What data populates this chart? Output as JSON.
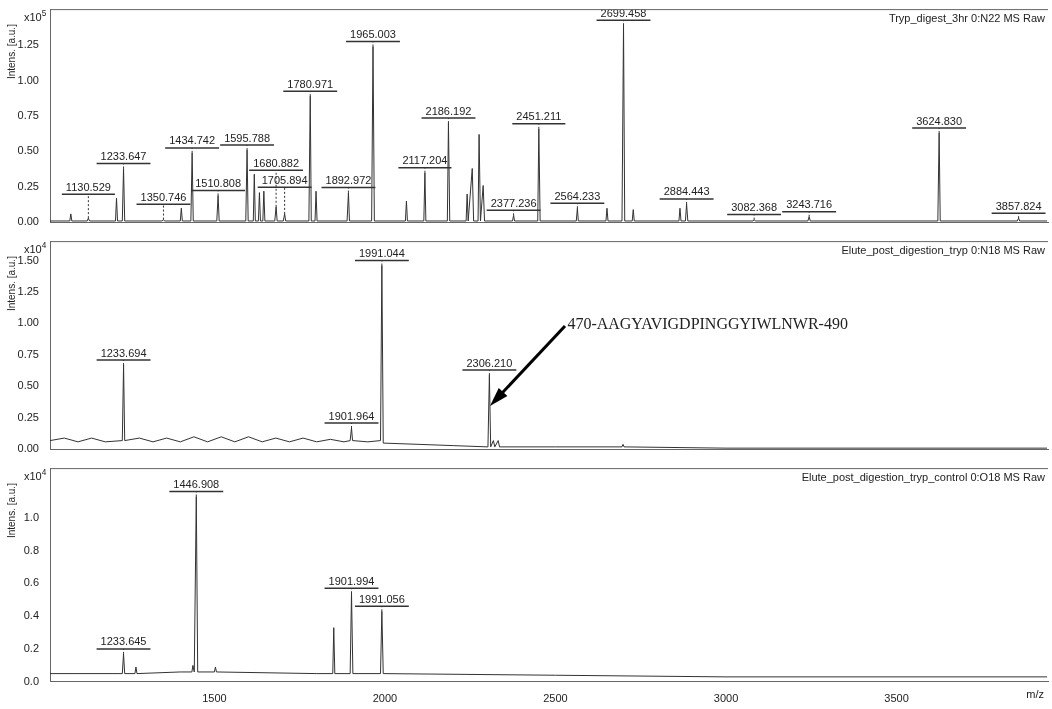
{
  "chart_data": [
    {
      "type": "line",
      "title": "Tryp_digest_3hr 0:N22 MS Raw",
      "ylabel": "Intens. [a.u.]",
      "color": "#333333",
      "tick_labels": "y",
      "xlim": [
        1018,
        3944
      ],
      "ylim": [
        0,
        1.5
      ],
      "yticks": [
        {
          "value": 0,
          "label": "0.00"
        },
        {
          "value": 0.25,
          "label": "0.25"
        },
        {
          "value": 0.5,
          "label": "0.50"
        },
        {
          "value": 0.75,
          "label": "0.75"
        },
        {
          "value": 1,
          "label": "1.00"
        },
        {
          "value": 1.25,
          "label": "1.25"
        }
      ],
      "x": [
        1018,
        1076,
        1079,
        1082,
        1127,
        1130.5,
        1134,
        1210,
        1213,
        1216,
        1230,
        1233.6,
        1237,
        1347,
        1350.7,
        1354,
        1400,
        1403,
        1406,
        1431,
        1434.7,
        1438,
        1507,
        1510.8,
        1514,
        1592,
        1595.8,
        1599,
        1614,
        1617,
        1620,
        1629,
        1632,
        1635,
        1642,
        1645,
        1648,
        1677,
        1680.9,
        1684,
        1702,
        1705.9,
        1709,
        1777,
        1781,
        1784,
        1795,
        1798,
        1801,
        1889,
        1893,
        1896,
        1961,
        1965,
        1969,
        2060,
        2063,
        2066,
        2114,
        2117.2,
        2120,
        2183,
        2186.2,
        2190,
        2238,
        2241,
        2244,
        2256,
        2260,
        2273,
        2276,
        2280,
        2288,
        2292,
        2374,
        2377.2,
        2380,
        2448,
        2451.2,
        2455,
        2561,
        2564.2,
        2567,
        2648,
        2651,
        2654,
        2695,
        2699.5,
        2703,
        2725,
        2728,
        2731,
        2862,
        2865,
        2868,
        2881,
        2884.4,
        2888,
        3079,
        3082.4,
        3086,
        3240,
        3243.7,
        3247,
        3621,
        3624.8,
        3628,
        3854,
        3857.8,
        3861,
        3940
      ],
      "values": [
        0.01,
        0.01,
        0.06,
        0.01,
        0.01,
        0.03,
        0.01,
        0.01,
        0.17,
        0.01,
        0.01,
        0.38,
        0.01,
        0.01,
        0.02,
        0.01,
        0.01,
        0.1,
        0.01,
        0.01,
        0.49,
        0.01,
        0.01,
        0.19,
        0.01,
        0.01,
        0.51,
        0.01,
        0.01,
        0.34,
        0.01,
        0.01,
        0.21,
        0.01,
        0.01,
        0.22,
        0.01,
        0.01,
        0.11,
        0.01,
        0.01,
        0.06,
        0.01,
        0.01,
        0.89,
        0.01,
        0.01,
        0.22,
        0.01,
        0.01,
        0.21,
        0.01,
        0.01,
        1.24,
        0.01,
        0.01,
        0.15,
        0.01,
        0.01,
        0.35,
        0.01,
        0.01,
        0.7,
        0.01,
        0.01,
        0.2,
        0.01,
        0.38,
        0.01,
        0.01,
        0.62,
        0.01,
        0.26,
        0.01,
        0.01,
        0.05,
        0.01,
        0.01,
        0.66,
        0.01,
        0.01,
        0.1,
        0.01,
        0.01,
        0.1,
        0.01,
        0.01,
        1.39,
        0.01,
        0.01,
        0.09,
        0.01,
        0.01,
        0.1,
        0.01,
        0.01,
        0.13,
        0.01,
        0.01,
        0.02,
        0.01,
        0.01,
        0.04,
        0.01,
        0.01,
        0.63,
        0.01,
        0.01,
        0.03,
        0.01,
        0.01
      ],
      "annotations": [
        "x10$^{5}$",
        {
          "text": "1130.529",
          "x": 1130.5,
          "y": 0.03
        },
        {
          "text": "1233.647",
          "x": 1233.6,
          "y": 0.38
        },
        {
          "text": "1350.746",
          "x": 1350.7,
          "y": 0.02
        },
        {
          "text": "1434.742",
          "x": 1434.7,
          "y": 0.49
        },
        {
          "text": "1510.808",
          "x": 1510.8,
          "y": 0.19
        },
        {
          "text": "1595.788",
          "x": 1595.8,
          "y": 0.51
        },
        {
          "text": "1680.882",
          "x": 1680.9,
          "y": 0.11
        },
        {
          "text": "1705.894",
          "x": 1705.9,
          "y": 0.06
        },
        {
          "text": "1780.971",
          "x": 1781,
          "y": 0.89
        },
        {
          "text": "1892.972",
          "x": 1893,
          "y": 0.21
        },
        {
          "text": "1965.003",
          "x": 1965,
          "y": 1.24
        },
        {
          "text": "2117.204",
          "x": 2117.2,
          "y": 0.35
        },
        {
          "text": "2186.192",
          "x": 2186.2,
          "y": 0.7
        },
        {
          "text": "2377.236",
          "x": 2377.2,
          "y": 0.05
        },
        {
          "text": "2451.211",
          "x": 2451.2,
          "y": 0.66
        },
        {
          "text": "2564.233",
          "x": 2564.2,
          "y": 0.1
        },
        {
          "text": "2699.458",
          "x": 2699.5,
          "y": 1.39
        },
        {
          "text": "2884.443",
          "x": 2884.4,
          "y": 0.13
        },
        {
          "text": "3082.368",
          "x": 3082.4,
          "y": 0.02
        },
        {
          "text": "3243.716",
          "x": 3243.7,
          "y": 0.04
        },
        {
          "text": "3624.830",
          "x": 3624.8,
          "y": 0.63
        },
        {
          "text": "3857.824",
          "x": 3857.8,
          "y": 0.03
        }
      ]
    },
    {
      "type": "line",
      "title": "Elute_post_digestion_tryp 0:N18 MS Raw",
      "ylabel": "Intens. [a.u.]",
      "color": "#333333",
      "tick_labels": "y",
      "xlim": [
        1018,
        3944
      ],
      "ylim": [
        0,
        1.65
      ],
      "yticks": [
        {
          "value": 0,
          "label": "0.00"
        },
        {
          "value": 0.25,
          "label": "0.25"
        },
        {
          "value": 0.5,
          "label": "0.50"
        },
        {
          "value": 0.75,
          "label": "0.75"
        },
        {
          "value": 1,
          "label": "1.00"
        },
        {
          "value": 1.25,
          "label": "1.25"
        },
        {
          "value": 1.5,
          "label": "1.50"
        }
      ],
      "x": [
        1018,
        1060,
        1100,
        1140,
        1180,
        1230,
        1233.7,
        1237,
        1280,
        1320,
        1360,
        1400,
        1440,
        1480,
        1520,
        1560,
        1600,
        1640,
        1680,
        1720,
        1760,
        1800,
        1840,
        1880,
        1898,
        1902,
        1905,
        1950,
        1987,
        1991,
        1995,
        2100,
        2200,
        2302,
        2306.2,
        2310,
        2318,
        2322,
        2332,
        2336,
        2500,
        2695,
        2698,
        2701,
        3000,
        3940
      ],
      "values": [
        0.07,
        0.09,
        0.06,
        0.09,
        0.06,
        0.07,
        0.67,
        0.07,
        0.09,
        0.06,
        0.09,
        0.06,
        0.1,
        0.06,
        0.1,
        0.06,
        0.1,
        0.06,
        0.09,
        0.06,
        0.09,
        0.06,
        0.08,
        0.06,
        0.07,
        0.17,
        0.07,
        0.06,
        0.07,
        1.46,
        0.05,
        0.04,
        0.03,
        0.02,
        0.59,
        0.02,
        0.07,
        0.02,
        0.07,
        0.02,
        0.02,
        0.02,
        0.04,
        0.02,
        0.01,
        0.01
      ],
      "annotations": [
        "x10$^{4}$",
        {
          "text": "1233.694",
          "x": 1233.7,
          "y": 0.67
        },
        {
          "text": "1901.964",
          "x": 1902,
          "y": 0.17
        },
        {
          "text": "1991.044",
          "x": 1991,
          "y": 1.46
        },
        {
          "text": "2306.210",
          "x": 2306.2,
          "y": 0.59
        },
        "470-AAGYAVIGDPINGGYIWLNWR-490"
      ]
    },
    {
      "type": "line",
      "title": "Elute_post_digestion_tryp_control 0:O18 MS Raw",
      "ylabel": "Intens. [a.u.]",
      "xlabel": "m/z",
      "color": "#333333",
      "xlim": [
        1018,
        3944
      ],
      "ylim": [
        0,
        1.3
      ],
      "xticks": [
        1500,
        2000,
        2500,
        3000,
        3500
      ],
      "yticks": [
        {
          "value": 0,
          "label": "0.0"
        },
        {
          "value": 0.2,
          "label": "0.2"
        },
        {
          "value": 0.4,
          "label": "0.4"
        },
        {
          "value": 0.6,
          "label": "0.6"
        },
        {
          "value": 0.8,
          "label": "0.8"
        },
        {
          "value": 1,
          "label": "1.0"
        }
      ],
      "x": [
        1018,
        1100,
        1200,
        1230,
        1233.6,
        1237,
        1267,
        1270,
        1273,
        1400,
        1434,
        1437,
        1441,
        1443,
        1446.9,
        1451,
        1500,
        1503,
        1506,
        1800,
        1847,
        1850,
        1853,
        1898,
        1902,
        1906,
        1987,
        1991,
        1995,
        2500,
        3000,
        3940
      ],
      "values": [
        0.05,
        0.05,
        0.05,
        0.05,
        0.17,
        0.05,
        0.05,
        0.09,
        0.05,
        0.06,
        0.06,
        0.1,
        0.06,
        0.06,
        1.13,
        0.06,
        0.06,
        0.09,
        0.06,
        0.05,
        0.05,
        0.33,
        0.05,
        0.05,
        0.54,
        0.05,
        0.05,
        0.43,
        0.05,
        0.04,
        0.03,
        0.03
      ],
      "annotations": [
        "x10$^{4}$",
        {
          "text": "1233.645",
          "x": 1233.6,
          "y": 0.17
        },
        {
          "text": "1446.908",
          "x": 1446.9,
          "y": 1.13
        },
        {
          "text": "1901.994",
          "x": 1902,
          "y": 0.54
        },
        {
          "text": "1991.056",
          "x": 1991,
          "y": 0.43
        }
      ]
    }
  ]
}
